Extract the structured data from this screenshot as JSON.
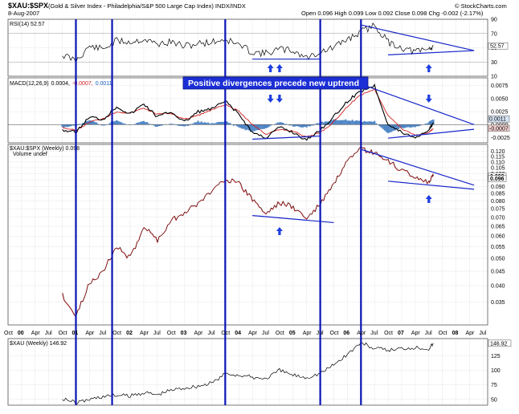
{
  "header": {
    "symbol": "$XAU:$SPX",
    "description": "(Gold & Silver Index - Philadelphia/S&P 500 Large Cap Index) INDX/INDX",
    "date": "8-Aug-2007",
    "ohlc": "Open 0.096  High 0.099  Low 0.092  Close 0.098  Chg -0.002 (-2.17%)",
    "copyright": "© StockCharts.com"
  },
  "annotation": {
    "banner": "Positive divergences precede new uptrend"
  },
  "colors": {
    "vertical_lines": "#0a14b4",
    "trendlines": "#1525c8",
    "arrows": "#1d3ee0",
    "price_line": "#c41c1c",
    "macd_line": "#000000",
    "signal_line": "#d02020",
    "histogram": "#4f86c6",
    "rsi_line": "#000000"
  },
  "chart_data": [
    {
      "panel": "rsi",
      "type": "line",
      "label": "RSI(14) 52.57",
      "last_value_tag": "52.57",
      "ylim": [
        10,
        90
      ],
      "yticks": [
        10,
        30,
        50,
        70,
        90
      ],
      "reference_lines": [
        30,
        70
      ],
      "x": [
        "Oct 00",
        "Jan 01",
        "Apr 01",
        "Jul 01",
        "Oct 01",
        "Jan 02",
        "Apr 02",
        "Jul 02",
        "Oct 02",
        "Jan 03",
        "Apr 03",
        "Jul 03",
        "Oct 03",
        "Jan 04",
        "Apr 04",
        "Jul 04",
        "Oct 04",
        "Jan 05",
        "Apr 05",
        "Jul 05",
        "Oct 05",
        "Jan 06",
        "Apr 06",
        "Jul 06",
        "Oct 06",
        "Jan 07",
        "Apr 07",
        "Jul 07",
        "Aug 07"
      ],
      "values": [
        40,
        32,
        52,
        48,
        60,
        58,
        62,
        55,
        58,
        52,
        56,
        58,
        62,
        54,
        44,
        42,
        48,
        46,
        36,
        44,
        50,
        62,
        72,
        82,
        58,
        50,
        44,
        48,
        52.57
      ],
      "grid": true
    },
    {
      "panel": "macd",
      "type": "line+histogram",
      "label": "MACD(12,26,9) 0.0004, -0.0007, 0.0011",
      "label_parts": [
        "MACD(12,26,9)",
        "0.0004,",
        "-0.0007,",
        "0.0011"
      ],
      "last_value_tags": [
        "0.0011",
        "-0.0007"
      ],
      "ylim": [
        -0.0035,
        0.009
      ],
      "yticks": [
        -0.0025,
        0.0,
        0.0025,
        0.005,
        0.0075
      ],
      "ytick_labels": [
        "-0.0025",
        "0.0000",
        "0.0025",
        "0.0050",
        "0.0075"
      ],
      "x": [
        "Oct 00",
        "Jan 01",
        "Apr 01",
        "Jul 01",
        "Oct 01",
        "Jan 02",
        "Apr 02",
        "Jul 02",
        "Oct 02",
        "Jan 03",
        "Apr 03",
        "Jul 03",
        "Oct 03",
        "Jan 04",
        "Apr 04",
        "Jul 04",
        "Oct 04",
        "Jan 05",
        "Apr 05",
        "Jul 05",
        "Oct 05",
        "Jan 06",
        "Apr 06",
        "Jul 06",
        "Oct 06",
        "Jan 07",
        "Apr 07",
        "Jul 07",
        "Aug 07"
      ],
      "series": [
        {
          "name": "MACD",
          "values": [
            -0.001,
            -0.0015,
            0.0015,
            0.001,
            0.0035,
            0.002,
            0.004,
            0.0015,
            0.0025,
            0.0005,
            0.0025,
            0.003,
            0.0045,
            0.002,
            -0.0015,
            -0.0025,
            -0.0005,
            -0.0015,
            -0.003,
            -0.001,
            0.0015,
            0.0045,
            0.0065,
            0.0075,
            0.0,
            -0.0015,
            -0.0025,
            -0.001,
            0.0004
          ]
        },
        {
          "name": "Signal",
          "values": [
            -0.0005,
            -0.0012,
            0.0005,
            0.0012,
            0.0025,
            0.0022,
            0.0032,
            0.002,
            0.0022,
            0.001,
            0.0018,
            0.0028,
            0.0038,
            0.0026,
            0.0,
            -0.0018,
            -0.001,
            -0.0012,
            -0.0024,
            -0.0015,
            0.0005,
            0.0035,
            0.0058,
            0.0068,
            0.0018,
            -0.0008,
            -0.002,
            -0.0015,
            -0.0007
          ]
        }
      ],
      "grid": true
    },
    {
      "panel": "price",
      "type": "line",
      "label": "$XAU:$SPX (Weekly) 0.098",
      "volume_note": "Volume undef",
      "last_value_tags": [
        "0.098",
        "0.096"
      ],
      "scale": "log",
      "ylim": [
        0.029,
        0.127
      ],
      "yticks": [
        0.035,
        0.04,
        0.045,
        0.05,
        0.055,
        0.06,
        0.065,
        0.07,
        0.075,
        0.08,
        0.085,
        0.09,
        0.095,
        0.1,
        0.105,
        0.11,
        0.115,
        0.12
      ],
      "ytick_labels": [
        "0.035",
        "0.040",
        "0.045",
        "0.050",
        "0.055",
        "0.060",
        "0.065",
        "0.070",
        "0.075",
        "0.080",
        "0.085",
        "0.090",
        "0.095",
        "0.100",
        "0.105",
        "0.110",
        "0.115",
        "0.120"
      ],
      "x": [
        "Oct 00",
        "Jan 01",
        "Apr 01",
        "Jul 01",
        "Oct 01",
        "Jan 02",
        "Apr 02",
        "Jul 02",
        "Oct 02",
        "Jan 03",
        "Apr 03",
        "Jul 03",
        "Oct 03",
        "Jan 04",
        "Apr 04",
        "Jul 04",
        "Oct 04",
        "Jan 05",
        "Apr 05",
        "Jul 05",
        "Oct 05",
        "Jan 06",
        "Apr 06",
        "Jul 06",
        "Oct 06",
        "Jan 07",
        "Apr 07",
        "Jul 07",
        "Aug 07"
      ],
      "values": [
        0.037,
        0.031,
        0.041,
        0.045,
        0.055,
        0.05,
        0.065,
        0.058,
        0.068,
        0.073,
        0.078,
        0.087,
        0.096,
        0.092,
        0.081,
        0.072,
        0.079,
        0.076,
        0.069,
        0.078,
        0.092,
        0.11,
        0.122,
        0.118,
        0.11,
        0.103,
        0.097,
        0.093,
        0.098
      ],
      "grid": true
    },
    {
      "panel": "xau",
      "type": "line",
      "label": "$XAU (Weekly) 146.92",
      "last_value_tag": "146.92",
      "ylim": [
        40,
        155
      ],
      "yticks": [
        50,
        75,
        100,
        125
      ],
      "x": [
        "Oct 00",
        "Jan 01",
        "Apr 01",
        "Jul 01",
        "Oct 01",
        "Jan 02",
        "Apr 02",
        "Jul 02",
        "Oct 02",
        "Jan 03",
        "Apr 03",
        "Jul 03",
        "Oct 03",
        "Jan 04",
        "Apr 04",
        "Jul 04",
        "Oct 04",
        "Jan 05",
        "Apr 05",
        "Jul 05",
        "Oct 05",
        "Jan 06",
        "Apr 06",
        "Jul 06",
        "Oct 06",
        "Jan 07",
        "Apr 07",
        "Jul 07",
        "Aug 07"
      ],
      "values": [
        52,
        44,
        50,
        55,
        57,
        56,
        62,
        58,
        66,
        70,
        73,
        78,
        94,
        92,
        88,
        86,
        100,
        92,
        88,
        95,
        110,
        128,
        148,
        138,
        135,
        138,
        140,
        138,
        146.92
      ],
      "grid": true
    }
  ],
  "time_axis": {
    "months": [
      "Oct",
      "Jan",
      "Apr",
      "Jul"
    ],
    "years": [
      "00",
      "01",
      "02",
      "03",
      "04",
      "05",
      "06",
      "07",
      "08"
    ],
    "tick_labels": [
      "Oct",
      "00",
      "Apr",
      "Jul",
      "Oct",
      "01",
      "Apr",
      "Jul",
      "Oct",
      "02",
      "Apr",
      "Jul",
      "Oct",
      "03",
      "Apr",
      "Jul",
      "Oct",
      "04",
      "Apr",
      "Jul",
      "Oct",
      "05",
      "Apr",
      "Jul",
      "Oct",
      "06",
      "Apr",
      "Jul",
      "Oct",
      "07",
      "Apr",
      "Jul",
      "Oct",
      "08",
      "Apr",
      "Jul"
    ],
    "tick_months": [
      "Oct 99",
      "Jan 00",
      "Apr 00",
      "Jul 00",
      "Oct 00",
      "Jan 01",
      "Apr 01",
      "Jul 01",
      "Oct 01",
      "Jan 02",
      "Apr 02",
      "Jul 02",
      "Oct 02",
      "Jan 03",
      "Apr 03",
      "Jul 03",
      "Oct 03",
      "Jan 04",
      "Apr 04",
      "Jul 04",
      "Oct 04",
      "Jan 05",
      "Apr 05",
      "Jul 05",
      "Oct 05",
      "Jan 06",
      "Apr 06",
      "Jul 06",
      "Oct 06",
      "Jan 07",
      "Apr 07",
      "Jul 07",
      "Oct 07",
      "Jan 08",
      "Apr 08",
      "Jul 08"
    ],
    "start_month": "Oct 99",
    "end_month": "Aug 08"
  },
  "vertical_markers": [
    "Jan 01",
    "Sep 01",
    "Oct 03",
    "Jul 05",
    "Apr 06"
  ],
  "divergence_arrows": [
    {
      "panel": "rsi",
      "at": [
        "Aug 04",
        "Oct 04",
        "Jul 07"
      ]
    },
    {
      "panel": "macd",
      "at": [
        "Aug 04",
        "Oct 04",
        "Jul 07"
      ]
    },
    {
      "panel": "price",
      "at": [
        "Oct 04",
        "Jul 07"
      ]
    }
  ]
}
